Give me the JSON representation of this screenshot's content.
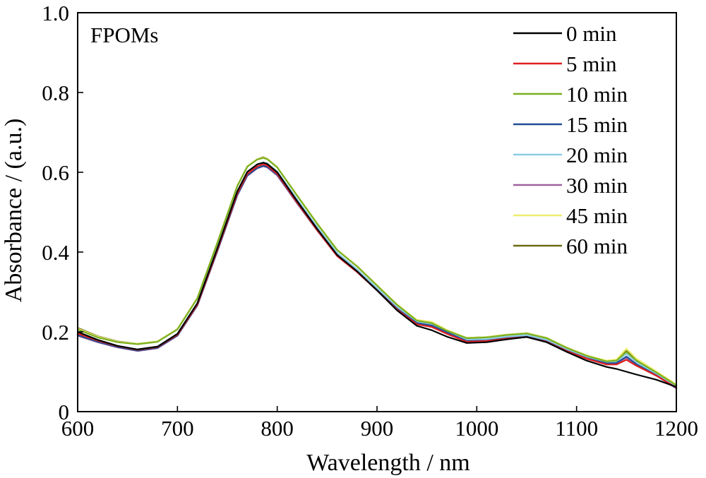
{
  "chart_data": {
    "type": "line",
    "annotation": "FPOMs",
    "annotation_color": "#d42020",
    "xlabel": "Wavelength / nm",
    "ylabel": "Absorbance / (a.u.)",
    "xlim": [
      600,
      1200
    ],
    "ylim": [
      0,
      1.0
    ],
    "xticks": [
      600,
      700,
      800,
      900,
      1000,
      1100,
      1200
    ],
    "xtick_labels": [
      "600",
      "700",
      "800",
      "900",
      "1000",
      "1100",
      "1200"
    ],
    "yticks": [
      0,
      0.2,
      0.4,
      0.6,
      0.8,
      1.0
    ],
    "ytick_labels": [
      "0",
      "0.2",
      "0.4",
      "0.6",
      "0.8",
      "1.0"
    ],
    "grid": false,
    "legend_position": "top-right",
    "x": [
      600,
      620,
      640,
      660,
      680,
      700,
      720,
      740,
      760,
      770,
      780,
      786,
      790,
      800,
      820,
      840,
      860,
      880,
      900,
      920,
      940,
      955,
      970,
      990,
      1010,
      1030,
      1050,
      1070,
      1090,
      1110,
      1130,
      1140,
      1150,
      1160,
      1180,
      1200
    ],
    "series": [
      {
        "name": "0 min",
        "color": "#000000",
        "values": [
          0.2,
          0.18,
          0.165,
          0.156,
          0.163,
          0.195,
          0.272,
          0.41,
          0.552,
          0.601,
          0.62,
          0.624,
          0.621,
          0.6,
          0.528,
          0.458,
          0.393,
          0.352,
          0.304,
          0.254,
          0.215,
          0.204,
          0.188,
          0.172,
          0.174,
          0.181,
          0.187,
          0.174,
          0.15,
          0.128,
          0.112,
          0.107,
          0.1,
          0.093,
          0.08,
          0.062
        ]
      },
      {
        "name": "5 min",
        "color": "#e02020",
        "values": [
          0.196,
          0.178,
          0.164,
          0.155,
          0.162,
          0.193,
          0.269,
          0.406,
          0.547,
          0.596,
          0.615,
          0.62,
          0.617,
          0.596,
          0.524,
          0.455,
          0.39,
          0.35,
          0.304,
          0.256,
          0.219,
          0.212,
          0.195,
          0.175,
          0.177,
          0.183,
          0.187,
          0.175,
          0.152,
          0.133,
          0.118,
          0.118,
          0.13,
          0.115,
          0.09,
          0.06
        ]
      },
      {
        "name": "10 min",
        "color": "#7ab020",
        "values": [
          0.206,
          0.186,
          0.174,
          0.169,
          0.175,
          0.206,
          0.284,
          0.423,
          0.565,
          0.614,
          0.632,
          0.636,
          0.633,
          0.612,
          0.541,
          0.471,
          0.405,
          0.364,
          0.316,
          0.268,
          0.228,
          0.222,
          0.203,
          0.184,
          0.186,
          0.192,
          0.196,
          0.184,
          0.16,
          0.14,
          0.126,
          0.128,
          0.15,
          0.128,
          0.098,
          0.066
        ]
      },
      {
        "name": "15 min",
        "color": "#1f4e96",
        "values": [
          0.192,
          0.175,
          0.162,
          0.153,
          0.16,
          0.191,
          0.267,
          0.403,
          0.543,
          0.592,
          0.611,
          0.616,
          0.614,
          0.594,
          0.523,
          0.455,
          0.391,
          0.351,
          0.305,
          0.258,
          0.222,
          0.216,
          0.199,
          0.177,
          0.178,
          0.184,
          0.188,
          0.176,
          0.153,
          0.134,
          0.121,
          0.122,
          0.138,
          0.119,
          0.091,
          0.059
        ]
      },
      {
        "name": "20 min",
        "color": "#8ccce6",
        "values": [
          0.196,
          0.178,
          0.165,
          0.156,
          0.163,
          0.195,
          0.272,
          0.41,
          0.552,
          0.601,
          0.62,
          0.625,
          0.622,
          0.602,
          0.532,
          0.463,
          0.398,
          0.357,
          0.31,
          0.262,
          0.225,
          0.22,
          0.202,
          0.181,
          0.182,
          0.188,
          0.192,
          0.18,
          0.157,
          0.138,
          0.124,
          0.126,
          0.145,
          0.124,
          0.094,
          0.062
        ]
      },
      {
        "name": "30 min",
        "color": "#a0609e",
        "values": [
          0.19,
          0.174,
          0.161,
          0.152,
          0.159,
          0.19,
          0.266,
          0.402,
          0.542,
          0.591,
          0.61,
          0.615,
          0.612,
          0.592,
          0.522,
          0.454,
          0.39,
          0.35,
          0.304,
          0.257,
          0.221,
          0.215,
          0.198,
          0.176,
          0.177,
          0.183,
          0.187,
          0.175,
          0.152,
          0.133,
          0.12,
          0.121,
          0.135,
          0.117,
          0.09,
          0.058
        ]
      },
      {
        "name": "45 min",
        "color": "#eeee70",
        "values": [
          0.208,
          0.188,
          0.175,
          0.17,
          0.176,
          0.207,
          0.285,
          0.424,
          0.566,
          0.615,
          0.633,
          0.637,
          0.634,
          0.613,
          0.542,
          0.472,
          0.406,
          0.365,
          0.317,
          0.269,
          0.23,
          0.225,
          0.205,
          0.185,
          0.187,
          0.193,
          0.197,
          0.185,
          0.161,
          0.141,
          0.128,
          0.131,
          0.158,
          0.133,
          0.101,
          0.068
        ]
      },
      {
        "name": "60 min",
        "color": "#6b6b10",
        "values": [
          0.21,
          0.189,
          0.176,
          0.17,
          0.176,
          0.207,
          0.285,
          0.424,
          0.566,
          0.615,
          0.633,
          0.638,
          0.634,
          0.613,
          0.542,
          0.472,
          0.406,
          0.365,
          0.317,
          0.268,
          0.229,
          0.223,
          0.204,
          0.185,
          0.187,
          0.193,
          0.197,
          0.185,
          0.161,
          0.141,
          0.127,
          0.129,
          0.152,
          0.13,
          0.099,
          0.067
        ]
      }
    ]
  }
}
